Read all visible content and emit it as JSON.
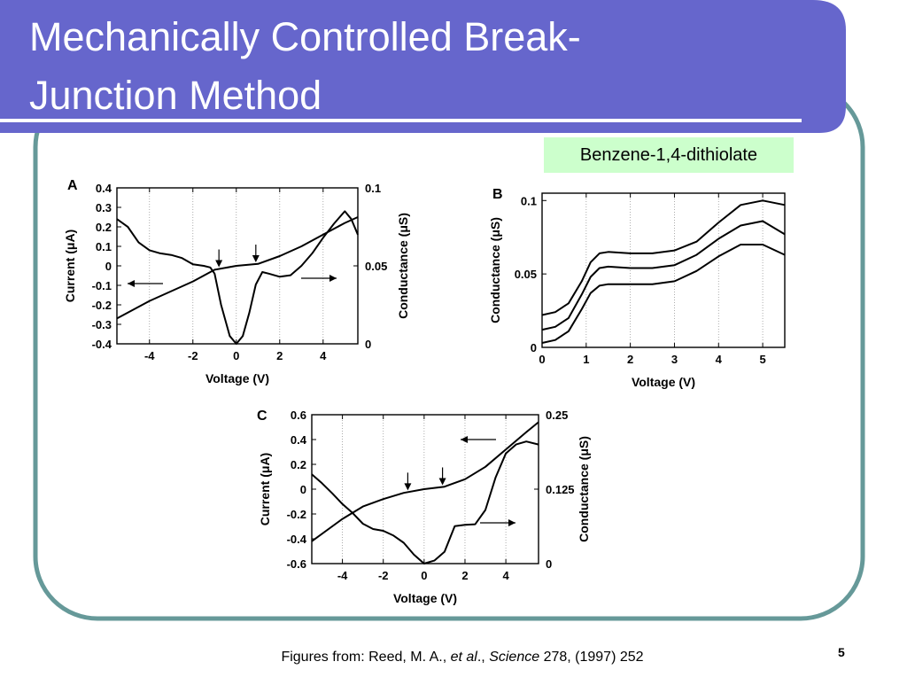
{
  "slide": {
    "title_line1": "Mechanically Controlled Break-",
    "title_line2": "Junction Method",
    "compound_label": "Benzene-1,4-dithiolate",
    "footer": {
      "prefix": "Figures from: Reed, M. A., ",
      "etal": "et al",
      "mid": "., ",
      "journal": "Science",
      "suffix": " 278, (1997) 252"
    },
    "slide_number": "5",
    "colors": {
      "banner": "#6666cc",
      "frame": "#669999",
      "label_bg": "#ccffcc"
    }
  },
  "chart_data": [
    {
      "panel": "A",
      "type": "line",
      "xlabel": "Voltage (V)",
      "ylabel_left": "Current (μA)",
      "ylabel_right": "Conductance (μS)",
      "xlim": [
        -5.5,
        5.6
      ],
      "ylim_left": [
        -0.4,
        0.4
      ],
      "ylim_right": [
        0,
        0.1
      ],
      "xticks": [
        "-4",
        "-2",
        "0",
        "2",
        "4"
      ],
      "yticks_left": [
        "0.4",
        "0.3",
        "0.2",
        "0.1",
        "0",
        "-0.1",
        "-0.2",
        "-0.3",
        "-0.4"
      ],
      "yticks_right": [
        "0.1",
        "0.05",
        "0"
      ],
      "series": [
        {
          "axis": "left",
          "x": [
            -5.5,
            -4,
            -3,
            -2,
            -1,
            0,
            1,
            2,
            3,
            4,
            5,
            5.6
          ],
          "y": [
            -0.27,
            -0.18,
            -0.13,
            -0.08,
            -0.02,
            0,
            0.01,
            0.05,
            0.1,
            0.16,
            0.22,
            0.25
          ]
        },
        {
          "axis": "right",
          "x": [
            -5.5,
            -5,
            -4.5,
            -4,
            -3.5,
            -3,
            -2.5,
            -2,
            -1.5,
            -1.2,
            -1,
            -0.7,
            -0.3,
            0,
            0.3,
            0.6,
            0.9,
            1.2,
            1.5,
            2,
            2.5,
            3,
            3.5,
            4,
            4.5,
            5,
            5.3,
            5.6
          ],
          "y": [
            0.08,
            0.075,
            0.065,
            0.06,
            0.058,
            0.057,
            0.055,
            0.051,
            0.05,
            0.049,
            0.045,
            0.025,
            0.005,
            0.0,
            0.005,
            0.02,
            0.038,
            0.046,
            0.045,
            0.043,
            0.044,
            0.05,
            0.058,
            0.068,
            0.077,
            0.085,
            0.08,
            0.07
          ]
        }
      ]
    },
    {
      "panel": "B",
      "type": "line",
      "xlabel": "Voltage (V)",
      "ylabel": "Conductance (μS)",
      "xlim": [
        0,
        5.5
      ],
      "ylim": [
        0,
        0.105
      ],
      "xticks": [
        "0",
        "1",
        "2",
        "3",
        "4",
        "5"
      ],
      "yticks": [
        "0.1",
        "0.05",
        "0"
      ],
      "series": [
        {
          "x": [
            0,
            0.3,
            0.6,
            0.9,
            1.1,
            1.3,
            1.5,
            2,
            2.5,
            3,
            3.5,
            4,
            4.5,
            5,
            5.5
          ],
          "y": [
            0.022,
            0.024,
            0.03,
            0.045,
            0.058,
            0.064,
            0.065,
            0.064,
            0.064,
            0.066,
            0.072,
            0.085,
            0.097,
            0.1,
            0.097
          ]
        },
        {
          "x": [
            0,
            0.3,
            0.6,
            0.9,
            1.1,
            1.3,
            1.5,
            2,
            2.5,
            3,
            3.5,
            4,
            4.5,
            5,
            5.5
          ],
          "y": [
            0.012,
            0.014,
            0.02,
            0.036,
            0.048,
            0.054,
            0.055,
            0.054,
            0.054,
            0.056,
            0.063,
            0.074,
            0.083,
            0.086,
            0.077
          ]
        },
        {
          "x": [
            0,
            0.3,
            0.6,
            0.9,
            1.1,
            1.3,
            1.5,
            2,
            2.5,
            3,
            3.5,
            4,
            4.5,
            5,
            5.5
          ],
          "y": [
            0.003,
            0.005,
            0.011,
            0.026,
            0.037,
            0.042,
            0.043,
            0.043,
            0.043,
            0.045,
            0.052,
            0.062,
            0.07,
            0.07,
            0.063
          ]
        }
      ]
    },
    {
      "panel": "C",
      "type": "line",
      "xlabel": "Voltage (V)",
      "ylabel_left": "Current (μA)",
      "ylabel_right": "Conductance (μS)",
      "xlim": [
        -5.5,
        5.6
      ],
      "ylim_left": [
        -0.6,
        0.6
      ],
      "ylim_right": [
        0,
        0.25
      ],
      "xticks": [
        "-4",
        "-2",
        "0",
        "2",
        "4"
      ],
      "yticks_left": [
        "0.6",
        "0.4",
        "0.2",
        "0",
        "-0.2",
        "-0.4",
        "-0.6"
      ],
      "yticks_right": [
        "0.25",
        "0.125",
        "0"
      ],
      "series": [
        {
          "axis": "left",
          "x": [
            -5.5,
            -4,
            -3,
            -2,
            -1,
            0,
            1,
            2,
            3,
            4,
            5,
            5.6
          ],
          "y": [
            -0.42,
            -0.24,
            -0.14,
            -0.08,
            -0.03,
            0,
            0.02,
            0.08,
            0.18,
            0.32,
            0.46,
            0.54
          ]
        },
        {
          "axis": "right",
          "x": [
            -5.5,
            -5,
            -4.5,
            -4,
            -3.5,
            -3,
            -2.5,
            -2,
            -1.5,
            -1,
            -0.5,
            0,
            0.5,
            1,
            1.5,
            2,
            2.5,
            3,
            3.5,
            4,
            4.5,
            5,
            5.6
          ],
          "y": [
            0.15,
            0.135,
            0.118,
            0.1,
            0.085,
            0.067,
            0.058,
            0.055,
            0.047,
            0.035,
            0.015,
            0.0,
            0.005,
            0.02,
            0.063,
            0.065,
            0.066,
            0.09,
            0.145,
            0.185,
            0.2,
            0.205,
            0.2
          ]
        }
      ]
    }
  ]
}
